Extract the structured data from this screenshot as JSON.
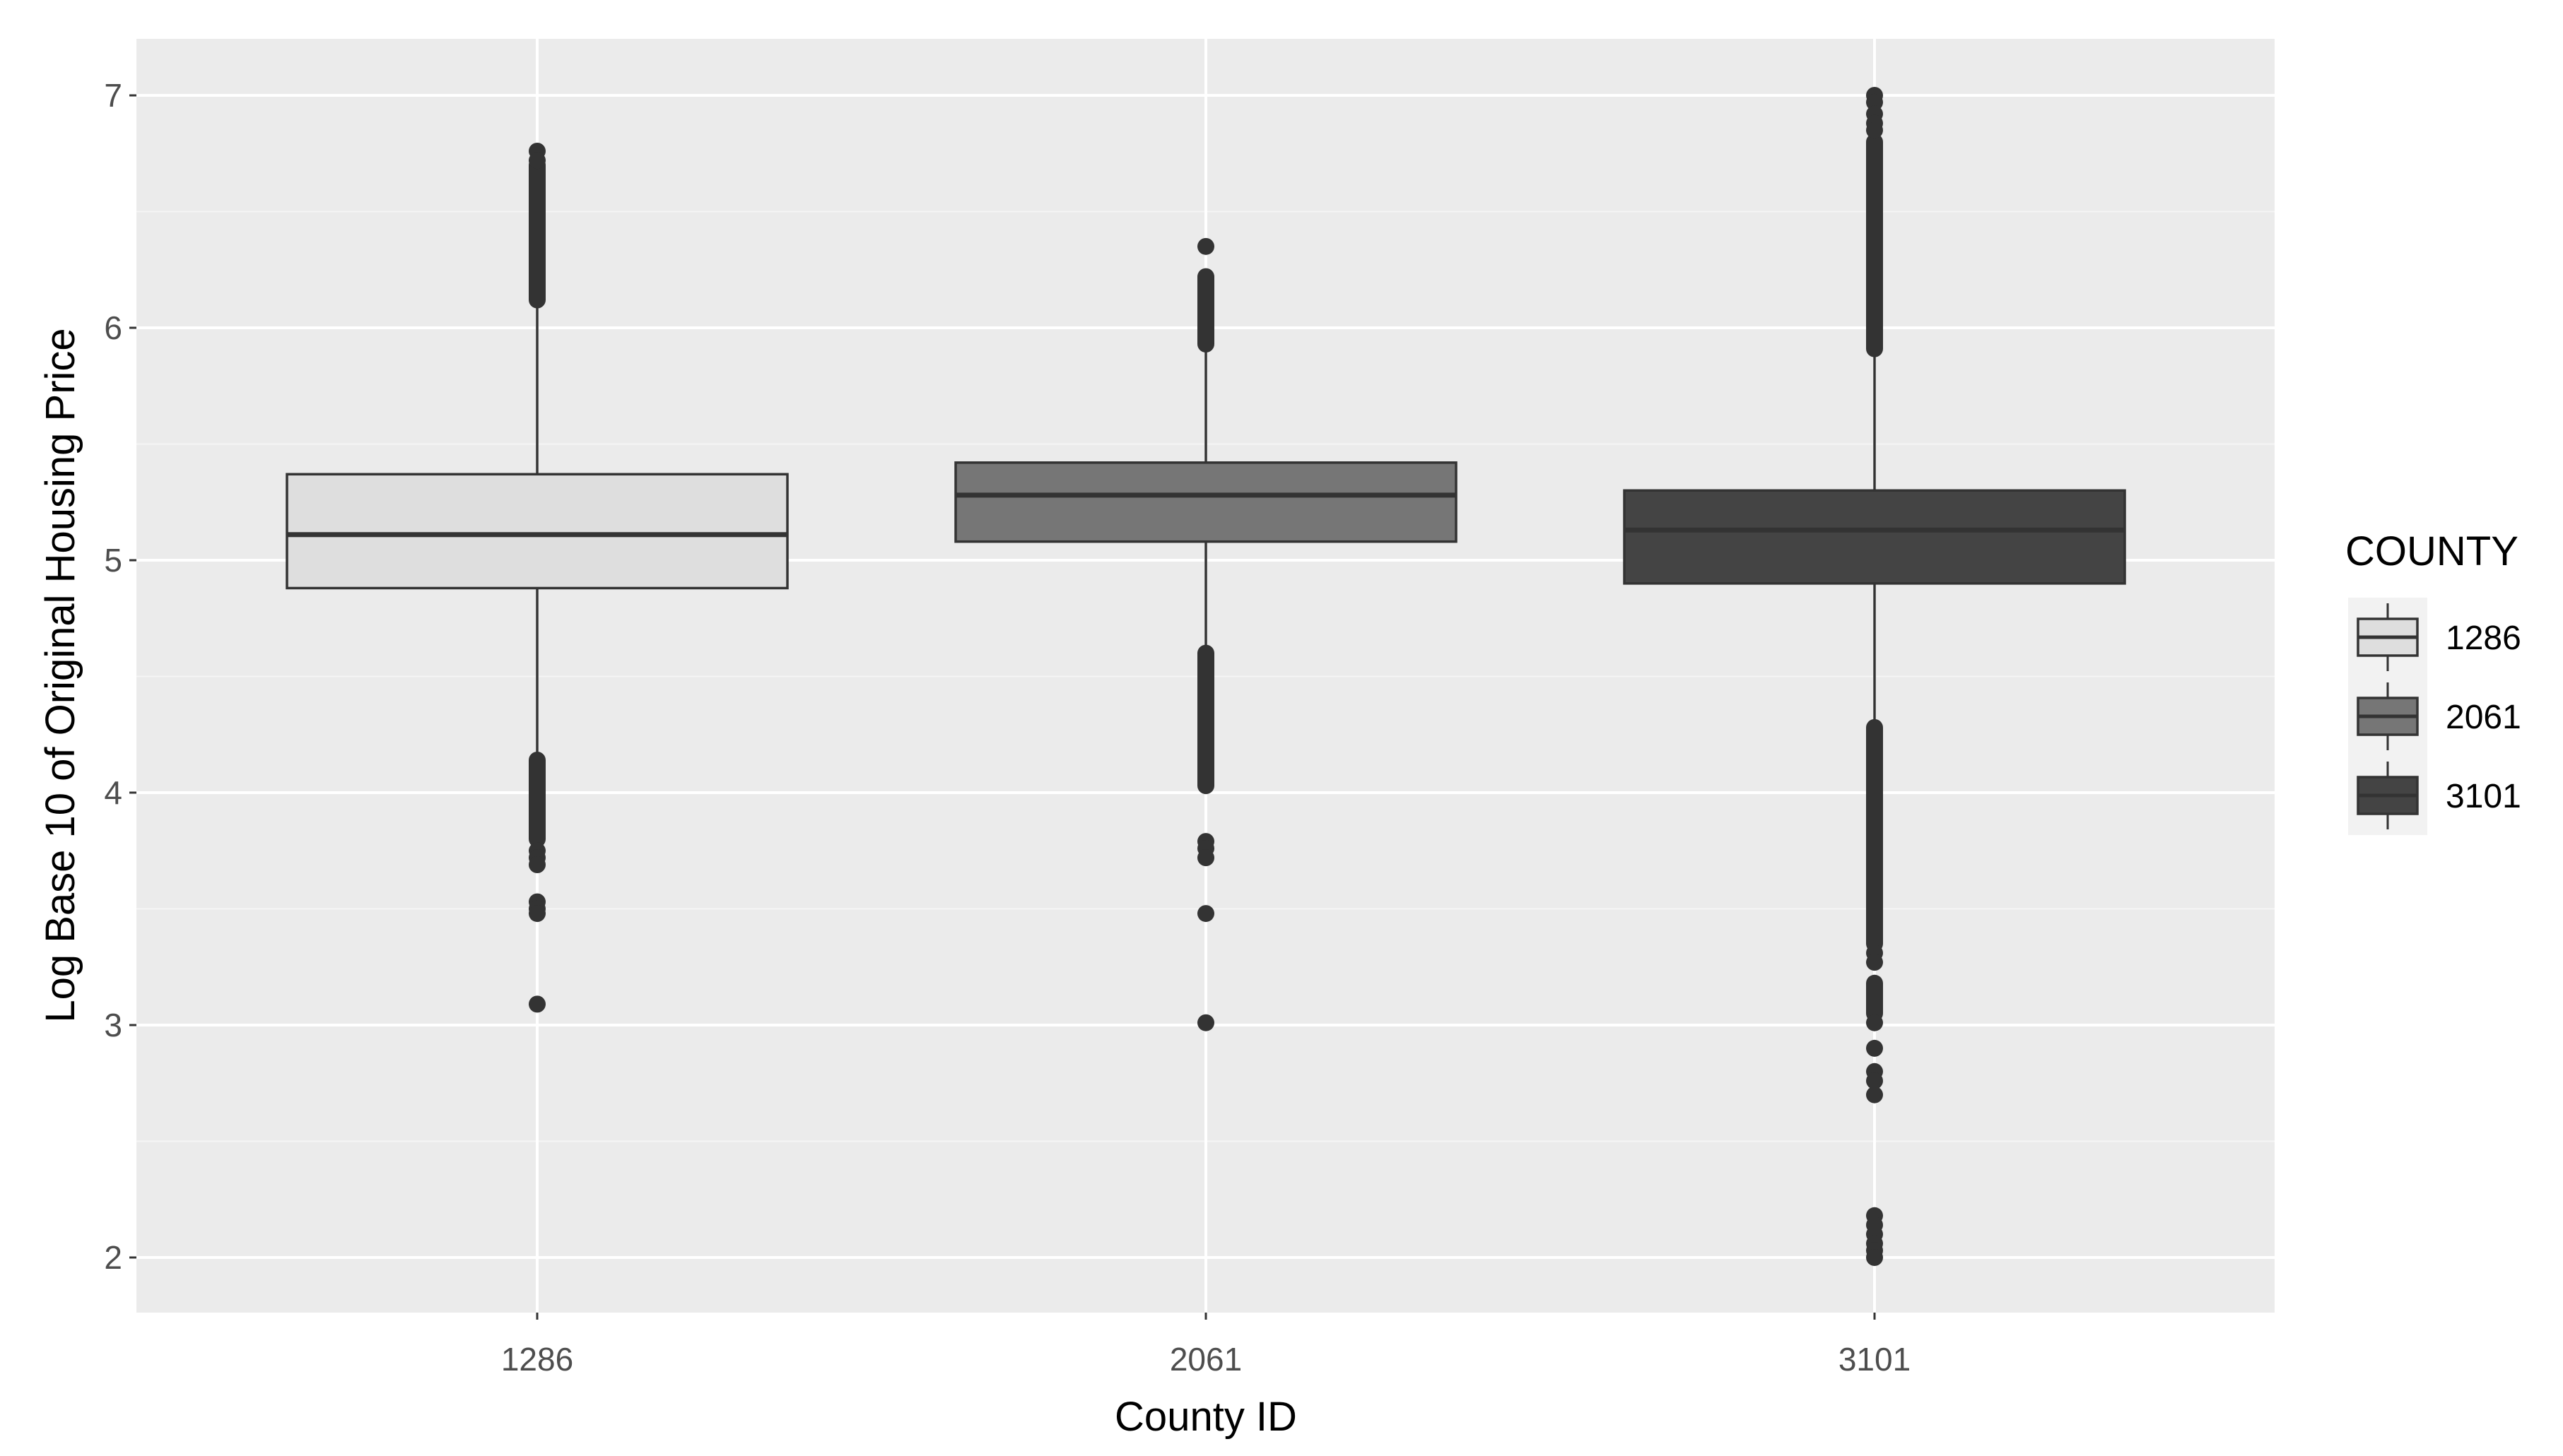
{
  "chart_data": {
    "type": "boxplot",
    "title": "",
    "xlabel": "County ID",
    "ylabel": "Log Base 10 of Original Housing Price",
    "ylim": [
      1.75,
      7.25
    ],
    "yticks": [
      2,
      3,
      4,
      5,
      6,
      7
    ],
    "categories": [
      "1286",
      "2061",
      "3101"
    ],
    "grid": true,
    "legend": {
      "title": "COUNTY",
      "placement": "right",
      "entries": [
        "1286",
        "2061",
        "3101"
      ]
    },
    "colors": {
      "panel_background": "#ebebeb",
      "grid_major": "#ffffff",
      "grid_minor": "#f5f5f5",
      "outline": "#333333",
      "outlier": "#333333",
      "fills": [
        "#dedede",
        "#767676",
        "#444444"
      ]
    },
    "series": [
      {
        "name": "1286",
        "q1": 4.88,
        "median": 5.11,
        "q3": 5.37,
        "whisker_low": 4.16,
        "whisker_high": 6.1,
        "outlier_ranges": [
          [
            6.12,
            6.7
          ],
          [
            3.8,
            4.14
          ]
        ],
        "outliers": [
          6.76,
          6.72,
          3.75,
          3.72,
          3.69,
          3.53,
          3.5,
          3.48,
          3.09
        ]
      },
      {
        "name": "2061",
        "q1": 5.08,
        "median": 5.28,
        "q3": 5.42,
        "whisker_low": 4.6,
        "whisker_high": 5.92,
        "outlier_ranges": [
          [
            5.93,
            6.22
          ],
          [
            4.03,
            4.6
          ]
        ],
        "outliers": [
          6.35,
          3.79,
          3.76,
          3.72,
          3.48,
          3.01
        ]
      },
      {
        "name": "3101",
        "q1": 4.9,
        "median": 5.13,
        "q3": 5.3,
        "whisker_low": 4.3,
        "whisker_high": 5.9,
        "outlier_ranges": [
          [
            5.91,
            6.8
          ],
          [
            3.35,
            4.28
          ],
          [
            3.05,
            3.18
          ]
        ],
        "outliers": [
          7.0,
          6.97,
          6.92,
          6.88,
          6.85,
          3.31,
          3.27,
          3.01,
          2.9,
          2.8,
          2.76,
          2.7,
          2.18,
          2.14,
          2.1,
          2.06,
          2.03,
          2.0
        ]
      }
    ]
  }
}
